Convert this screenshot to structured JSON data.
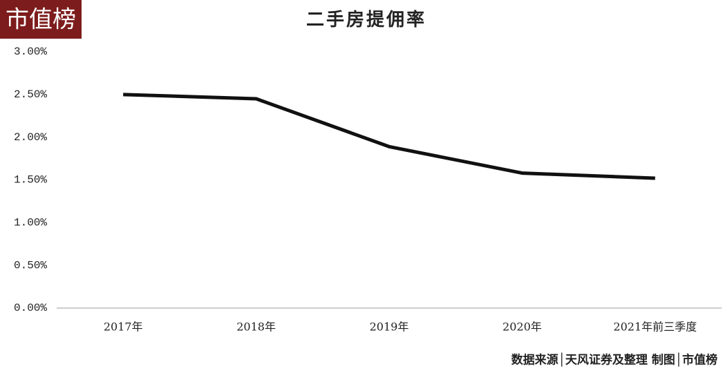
{
  "brand": "市值榜",
  "chart_data": {
    "type": "line",
    "title": "二手房提佣率",
    "categories": [
      "2017年",
      "2018年",
      "2019年",
      "2020年",
      "2021年前三季度"
    ],
    "values": [
      2.5,
      2.45,
      1.89,
      1.58,
      1.52
    ],
    "color": "#111111",
    "ylim": [
      0,
      3
    ],
    "yticks": [
      {
        "value": 0,
        "label": "0.00%"
      },
      {
        "value": 0.5,
        "label": "0.50%"
      },
      {
        "value": 1,
        "label": "1.00%"
      },
      {
        "value": 1.5,
        "label": "1.50%"
      },
      {
        "value": 2,
        "label": "2.00%"
      },
      {
        "value": 2.5,
        "label": "2.50%"
      },
      {
        "value": 3,
        "label": "3.00%"
      }
    ],
    "grid": false,
    "source": "数据来源│天风证券及整理  制图│市值榜"
  }
}
